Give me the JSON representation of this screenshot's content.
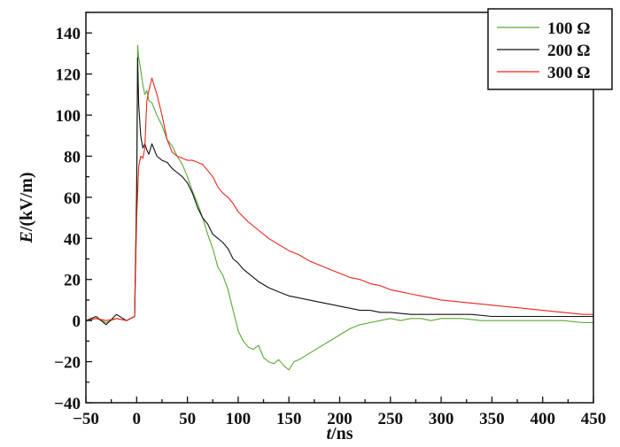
{
  "chart_data": {
    "type": "line",
    "xlabel_italic": "t",
    "xlabel_rest": "/ns",
    "ylabel_italic": "E",
    "ylabel_rest": "/(kV/m)",
    "xlim": [
      -50,
      450
    ],
    "ylim": [
      -40,
      150
    ],
    "x_ticks": [
      -50,
      0,
      50,
      100,
      150,
      200,
      250,
      300,
      350,
      400,
      450
    ],
    "y_ticks": [
      -40,
      -20,
      0,
      20,
      40,
      60,
      80,
      100,
      120,
      140
    ],
    "legend_position": "top-right",
    "grid": false,
    "series": [
      {
        "name": "100 Ω",
        "color": "#5aa832",
        "x": [
          -50,
          -40,
          -30,
          -20,
          -10,
          -2,
          0,
          1,
          2,
          4,
          6,
          8,
          10,
          12,
          15,
          20,
          25,
          30,
          35,
          40,
          45,
          50,
          55,
          60,
          65,
          70,
          75,
          80,
          85,
          90,
          95,
          100,
          105,
          110,
          115,
          120,
          125,
          130,
          135,
          140,
          145,
          150,
          155,
          160,
          170,
          180,
          190,
          200,
          210,
          220,
          230,
          240,
          250,
          260,
          270,
          280,
          290,
          300,
          320,
          340,
          360,
          380,
          400,
          420,
          440,
          450
        ],
        "y": [
          0,
          1,
          -1,
          1,
          0,
          2,
          70,
          134,
          128,
          122,
          115,
          110,
          112,
          107,
          106,
          100,
          95,
          88,
          85,
          80,
          76,
          70,
          63,
          57,
          50,
          42,
          35,
          26,
          22,
          15,
          5,
          -5,
          -10,
          -13,
          -14,
          -12,
          -18,
          -20,
          -21,
          -19,
          -22,
          -24,
          -20,
          -19,
          -16,
          -13,
          -10,
          -7,
          -4,
          -2,
          -1,
          0,
          1,
          0,
          1,
          1,
          0,
          1,
          1,
          0,
          0,
          0,
          0,
          0,
          -1,
          -1
        ]
      },
      {
        "name": "200 Ω",
        "color": "#111111",
        "x": [
          -50,
          -40,
          -30,
          -20,
          -10,
          -2,
          0,
          1,
          2,
          4,
          6,
          8,
          10,
          12,
          15,
          20,
          25,
          30,
          35,
          40,
          45,
          50,
          55,
          60,
          65,
          70,
          75,
          80,
          85,
          90,
          95,
          100,
          105,
          110,
          115,
          120,
          130,
          140,
          150,
          160,
          170,
          180,
          190,
          200,
          210,
          220,
          230,
          240,
          250,
          270,
          290,
          310,
          330,
          350,
          370,
          390,
          410,
          430,
          450
        ],
        "y": [
          0,
          2,
          -2,
          3,
          0,
          2,
          60,
          128,
          105,
          90,
          84,
          86,
          83,
          81,
          86,
          80,
          78,
          77,
          74,
          72,
          70,
          67,
          62,
          55,
          50,
          47,
          42,
          40,
          38,
          35,
          30,
          28,
          25,
          23,
          21,
          19,
          16,
          14,
          12,
          11,
          10,
          9,
          8,
          7,
          6,
          5,
          5,
          4,
          4,
          3,
          3,
          3,
          3,
          2,
          2,
          2,
          2,
          2,
          2
        ]
      },
      {
        "name": "300 Ω",
        "color": "#e8261c",
        "x": [
          -50,
          -40,
          -30,
          -20,
          -10,
          -2,
          0,
          2,
          4,
          6,
          8,
          10,
          12,
          15,
          20,
          25,
          30,
          35,
          40,
          45,
          50,
          55,
          60,
          65,
          70,
          75,
          80,
          85,
          90,
          95,
          100,
          110,
          120,
          130,
          140,
          150,
          160,
          170,
          180,
          190,
          200,
          210,
          220,
          230,
          240,
          250,
          260,
          270,
          280,
          290,
          300,
          320,
          340,
          360,
          380,
          400,
          420,
          440,
          450
        ],
        "y": [
          0,
          1,
          0,
          1,
          0,
          2,
          50,
          75,
          80,
          79,
          84,
          107,
          112,
          118,
          110,
          100,
          88,
          82,
          80,
          79,
          78,
          78,
          77,
          76,
          73,
          70,
          65,
          62,
          60,
          57,
          53,
          48,
          44,
          40,
          37,
          34,
          32,
          29,
          27,
          25,
          23,
          21,
          20,
          18,
          17,
          15,
          14,
          13,
          12,
          11,
          10,
          9,
          8,
          7,
          6,
          5,
          4,
          3,
          3
        ]
      }
    ]
  }
}
